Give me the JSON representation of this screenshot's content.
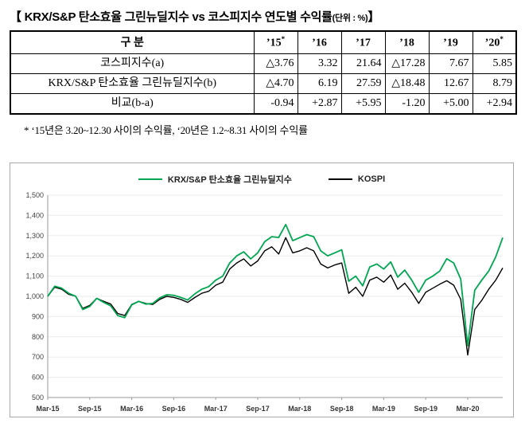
{
  "title": {
    "main": "【 KRX/S&P 탄소효율 그린뉴딜지수 vs 코스피지수 연도별 수익률",
    "unit": "(단위 : %)",
    "close": "】"
  },
  "table": {
    "headers": [
      {
        "label": "구 분",
        "sup": ""
      },
      {
        "label": "’15",
        "sup": "*"
      },
      {
        "label": "’16",
        "sup": ""
      },
      {
        "label": "’17",
        "sup": ""
      },
      {
        "label": "’18",
        "sup": ""
      },
      {
        "label": "’19",
        "sup": ""
      },
      {
        "label": "’20",
        "sup": "*"
      }
    ],
    "rows": [
      {
        "label": "코스피지수(a)",
        "values": [
          "△3.76",
          "3.32",
          "21.64",
          "△17.28",
          "7.67",
          "5.85"
        ]
      },
      {
        "label": "KRX/S&P 탄소효율 그린뉴딜지수(b)",
        "values": [
          "△4.70",
          "6.19",
          "27.59",
          "△18.48",
          "12.67",
          "8.79"
        ]
      },
      {
        "label": "비교(b-a)",
        "values": [
          "-0.94",
          "+2.87",
          "+5.95",
          "-1.20",
          "+5.00",
          "+2.94"
        ]
      }
    ]
  },
  "footnote": "* ‘15년은 3.20~12.30 사이의 수익률, ‘20년은 1.2~8.31 사이의 수익률",
  "chart_data": {
    "type": "line",
    "title": "",
    "xlabel": "",
    "ylabel": "",
    "ylim": [
      500,
      1500
    ],
    "grid": true,
    "legend_position": "top-center",
    "x_ticks": [
      {
        "i": 0,
        "label": "Mar-15"
      },
      {
        "i": 6,
        "label": "Sep-15"
      },
      {
        "i": 12,
        "label": "Mar-16"
      },
      {
        "i": 18,
        "label": "Sep-16"
      },
      {
        "i": 24,
        "label": "Mar-17"
      },
      {
        "i": 30,
        "label": "Sep-17"
      },
      {
        "i": 36,
        "label": "Mar-18"
      },
      {
        "i": 42,
        "label": "Sep-18"
      },
      {
        "i": 48,
        "label": "Mar-19"
      },
      {
        "i": 54,
        "label": "Sep-19"
      },
      {
        "i": 60,
        "label": "Mar-20"
      }
    ],
    "y_ticks": [
      {
        "v": 500,
        "label": "500"
      },
      {
        "v": 600,
        "label": "600"
      },
      {
        "v": 700,
        "label": "700"
      },
      {
        "v": 800,
        "label": "800"
      },
      {
        "v": 900,
        "label": "900"
      },
      {
        "v": 1000,
        "label": "1,000"
      },
      {
        "v": 1100,
        "label": "1,100"
      },
      {
        "v": 1200,
        "label": "1,200"
      },
      {
        "v": 1300,
        "label": "1,300"
      },
      {
        "v": 1400,
        "label": "1,400"
      },
      {
        "v": 1500,
        "label": "1,500"
      }
    ],
    "series": [
      {
        "name": "KRX/S&P 탄소효율 그린뉴딜지수",
        "color": "#00A651",
        "width": 1.8,
        "values": [
          1000,
          1050,
          1040,
          1015,
          1000,
          935,
          950,
          990,
          970,
          953,
          905,
          895,
          958,
          975,
          962,
          965,
          992,
          1008,
          1005,
          995,
          982,
          1012,
          1035,
          1048,
          1080,
          1100,
          1165,
          1200,
          1220,
          1185,
          1215,
          1270,
          1295,
          1291,
          1355,
          1275,
          1290,
          1305,
          1295,
          1225,
          1200,
          1215,
          1230,
          1075,
          1100,
          1052,
          1145,
          1160,
          1135,
          1170,
          1095,
          1130,
          1080,
          1020,
          1080,
          1100,
          1125,
          1186,
          1165,
          1085,
          755,
          1030,
          1080,
          1125,
          1195,
          1290
        ]
      },
      {
        "name": "KOSPI",
        "color": "#000000",
        "width": 1.4,
        "values": [
          1000,
          1045,
          1035,
          1010,
          1000,
          940,
          955,
          990,
          975,
          962,
          915,
          905,
          960,
          975,
          965,
          960,
          985,
          1000,
          995,
          985,
          970,
          994,
          1015,
          1025,
          1055,
          1070,
          1135,
          1165,
          1185,
          1150,
          1175,
          1225,
          1245,
          1209,
          1290,
          1215,
          1225,
          1240,
          1225,
          1160,
          1140,
          1155,
          1165,
          1015,
          1045,
          1000,
          1080,
          1095,
          1070,
          1105,
          1035,
          1065,
          1020,
          965,
          1020,
          1040,
          1060,
          1077,
          1055,
          985,
          710,
          935,
          980,
          1035,
          1080,
          1140
        ]
      }
    ]
  }
}
